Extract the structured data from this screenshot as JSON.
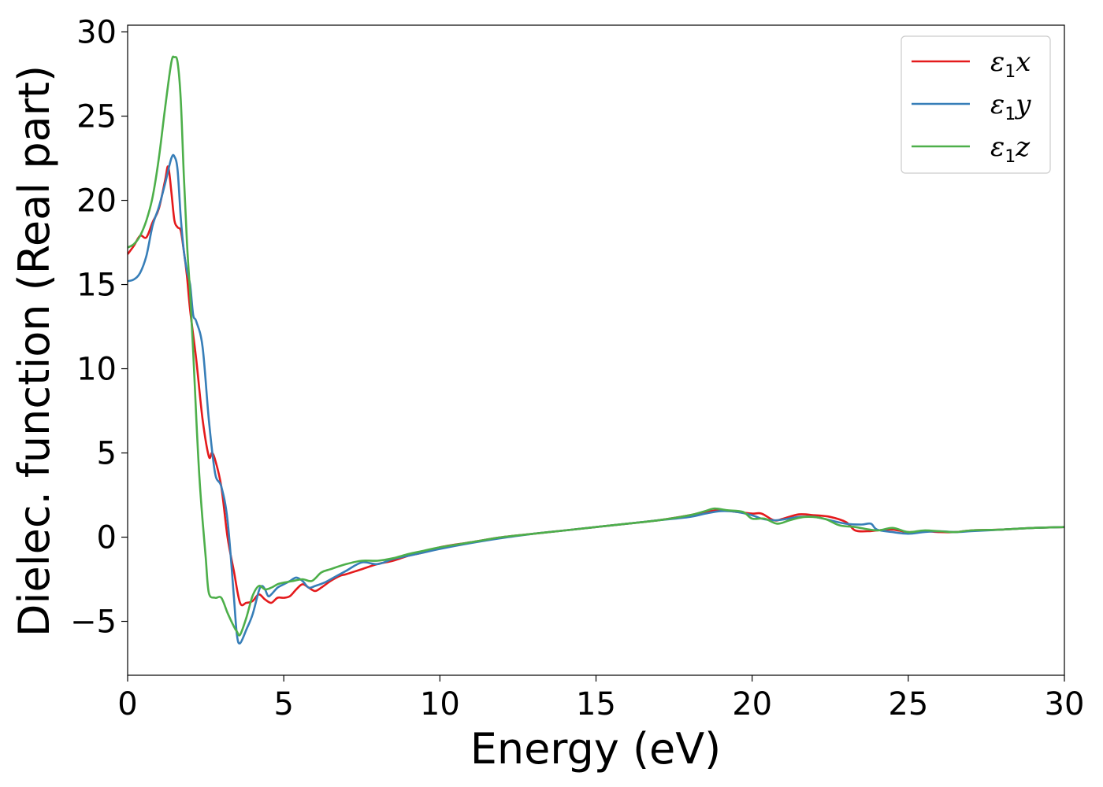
{
  "chart_data": {
    "type": "line",
    "title": "",
    "xlabel": "Energy (eV)",
    "ylabel": "Dielec. function (Real part)",
    "xlim": [
      0,
      30
    ],
    "ylim": [
      -8.2,
      30.4
    ],
    "xticks": [
      0,
      5,
      10,
      15,
      20,
      25,
      30
    ],
    "yticks": [
      -5,
      0,
      5,
      10,
      15,
      20,
      25,
      30
    ],
    "xtick_labels": [
      "0",
      "5",
      "10",
      "15",
      "20",
      "25",
      "30"
    ],
    "ytick_labels": [
      "−5",
      "0",
      "5",
      "10",
      "15",
      "20",
      "25",
      "30"
    ],
    "grid": false,
    "legend_position": "top-right",
    "series": [
      {
        "name": "ε1x",
        "symbol": "ε",
        "sub": "1",
        "axis": "x",
        "color": "#e41a1c",
        "x": [
          0,
          0.2,
          0.4,
          0.6,
          0.8,
          1.0,
          1.2,
          1.3,
          1.4,
          1.5,
          1.6,
          1.7,
          1.8,
          1.9,
          2.0,
          2.2,
          2.4,
          2.6,
          2.7,
          2.8,
          3.0,
          3.2,
          3.4,
          3.6,
          3.8,
          4.0,
          4.2,
          4.4,
          4.6,
          4.8,
          5.0,
          5.2,
          5.4,
          5.6,
          5.8,
          6.0,
          6.2,
          6.5,
          6.8,
          7.0,
          7.5,
          8.0,
          8.5,
          9.0,
          9.5,
          10,
          11,
          12,
          13,
          14,
          15,
          16,
          17,
          18,
          18.5,
          19,
          19.5,
          20,
          20.3,
          20.7,
          21,
          21.5,
          22,
          22.5,
          23,
          23.3,
          23.7,
          24,
          24.5,
          25,
          25.5,
          26,
          26.5,
          27,
          28,
          29,
          30
        ],
        "y": [
          16.8,
          17.3,
          17.9,
          17.8,
          18.7,
          19.5,
          21.2,
          22.0,
          20.5,
          18.8,
          18.4,
          18.2,
          17.0,
          15.5,
          13.5,
          10.5,
          7.0,
          4.8,
          5.0,
          4.6,
          3.0,
          0.0,
          -2.0,
          -3.9,
          -3.9,
          -3.8,
          -3.4,
          -3.7,
          -3.9,
          -3.6,
          -3.6,
          -3.5,
          -3.1,
          -2.8,
          -3.0,
          -3.2,
          -3.0,
          -2.6,
          -2.3,
          -2.2,
          -1.9,
          -1.6,
          -1.4,
          -1.1,
          -0.9,
          -0.6,
          -0.3,
          0.0,
          0.2,
          0.4,
          0.6,
          0.8,
          1.0,
          1.3,
          1.5,
          1.6,
          1.5,
          1.4,
          1.4,
          1.0,
          1.1,
          1.35,
          1.3,
          1.2,
          0.9,
          0.4,
          0.35,
          0.4,
          0.45,
          0.3,
          0.35,
          0.3,
          0.3,
          0.4,
          0.45,
          0.55,
          0.6
        ]
      },
      {
        "name": "ε1y",
        "symbol": "ε",
        "sub": "1",
        "axis": "y",
        "color": "#377eb8",
        "x": [
          0,
          0.2,
          0.4,
          0.6,
          0.8,
          1.0,
          1.2,
          1.4,
          1.5,
          1.6,
          1.7,
          1.8,
          1.9,
          2.0,
          2.1,
          2.2,
          2.4,
          2.6,
          2.8,
          3.0,
          3.2,
          3.4,
          3.5,
          3.6,
          3.8,
          4.0,
          4.2,
          4.3,
          4.4,
          4.5,
          4.6,
          4.8,
          5.0,
          5.2,
          5.4,
          5.6,
          5.8,
          6.0,
          6.3,
          6.6,
          7.0,
          7.5,
          8.0,
          8.5,
          9.0,
          9.5,
          10,
          11,
          12,
          13,
          14,
          15,
          16,
          17,
          18,
          18.5,
          19,
          19.5,
          20,
          20.3,
          20.7,
          21,
          21.5,
          22,
          22.5,
          23,
          23.5,
          23.8,
          24,
          24.5,
          25,
          25.5,
          26,
          26.5,
          27,
          28,
          29,
          30
        ],
        "y": [
          15.2,
          15.3,
          15.7,
          16.7,
          18.5,
          19.6,
          21.0,
          22.5,
          22.6,
          21.8,
          19.0,
          17.0,
          15.8,
          15.0,
          13.2,
          12.8,
          11.3,
          7.0,
          3.8,
          3.0,
          1.0,
          -3.5,
          -5.8,
          -6.3,
          -5.5,
          -4.6,
          -3.2,
          -2.9,
          -3.1,
          -3.5,
          -3.4,
          -3.0,
          -2.8,
          -2.6,
          -2.4,
          -2.6,
          -3.0,
          -2.9,
          -2.7,
          -2.4,
          -2.0,
          -1.5,
          -1.6,
          -1.3,
          -1.1,
          -0.9,
          -0.7,
          -0.35,
          -0.05,
          0.2,
          0.4,
          0.6,
          0.8,
          1.0,
          1.2,
          1.4,
          1.55,
          1.5,
          1.3,
          1.1,
          1.0,
          1.05,
          1.2,
          1.2,
          1.0,
          0.8,
          0.75,
          0.8,
          0.45,
          0.3,
          0.2,
          0.3,
          0.35,
          0.3,
          0.35,
          0.45,
          0.55,
          0.6
        ]
      },
      {
        "name": "ε1z",
        "symbol": "ε",
        "sub": "1",
        "axis": "z",
        "color": "#4daf4a",
        "x": [
          0,
          0.2,
          0.4,
          0.6,
          0.8,
          1.0,
          1.2,
          1.4,
          1.5,
          1.6,
          1.7,
          1.8,
          1.9,
          2.0,
          2.1,
          2.2,
          2.3,
          2.4,
          2.5,
          2.6,
          2.8,
          3.0,
          3.2,
          3.4,
          3.5,
          3.6,
          3.8,
          4.0,
          4.2,
          4.4,
          4.6,
          4.8,
          5.0,
          5.3,
          5.6,
          5.9,
          6.2,
          6.5,
          7.0,
          7.5,
          8.0,
          8.5,
          9.0,
          9.5,
          10,
          11,
          12,
          13,
          14,
          15,
          16,
          17,
          18,
          18.5,
          18.8,
          19.2,
          19.7,
          20,
          20.4,
          20.8,
          21.2,
          21.7,
          22.3,
          22.8,
          23.3,
          24,
          24.5,
          25,
          25.5,
          26,
          26.5,
          27,
          28,
          29,
          30
        ],
        "y": [
          17.2,
          17.4,
          17.9,
          18.8,
          20.2,
          22.5,
          25.5,
          28.2,
          28.5,
          28.2,
          26.0,
          21.5,
          17.5,
          14.5,
          11.0,
          7.0,
          3.5,
          1.0,
          -1.2,
          -3.3,
          -3.6,
          -3.6,
          -4.5,
          -5.3,
          -5.6,
          -5.8,
          -4.8,
          -3.5,
          -2.9,
          -3.1,
          -3.0,
          -2.8,
          -2.7,
          -2.6,
          -2.5,
          -2.6,
          -2.1,
          -1.9,
          -1.6,
          -1.4,
          -1.4,
          -1.25,
          -1.0,
          -0.8,
          -0.6,
          -0.3,
          0.0,
          0.2,
          0.4,
          0.6,
          0.8,
          1.0,
          1.3,
          1.55,
          1.7,
          1.6,
          1.5,
          1.1,
          1.1,
          0.8,
          1.0,
          1.2,
          1.1,
          0.7,
          0.6,
          0.4,
          0.55,
          0.3,
          0.4,
          0.35,
          0.3,
          0.4,
          0.45,
          0.55,
          0.6
        ]
      }
    ]
  }
}
